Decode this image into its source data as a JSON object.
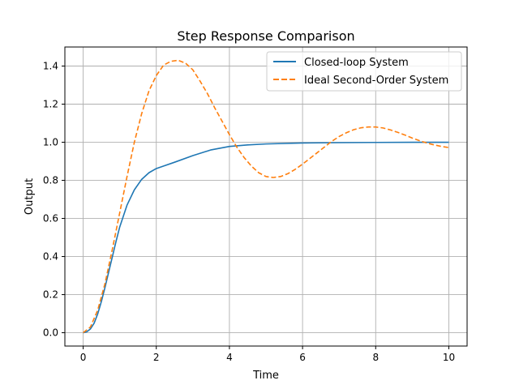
{
  "chart_data": {
    "type": "line",
    "title": "Step Response Comparison",
    "xlabel": "Time",
    "ylabel": "Output",
    "xlim": [
      -0.5,
      10.5
    ],
    "ylim": [
      -0.07,
      1.5
    ],
    "xticks": [
      0,
      2,
      4,
      6,
      8,
      10
    ],
    "yticks": [
      0.0,
      0.2,
      0.4,
      0.6,
      0.8,
      1.0,
      1.2,
      1.4
    ],
    "xtick_labels": [
      "0",
      "2",
      "4",
      "6",
      "8",
      "10"
    ],
    "ytick_labels": [
      "0.0",
      "0.2",
      "0.4",
      "0.6",
      "0.8",
      "1.0",
      "1.2",
      "1.4"
    ],
    "grid": true,
    "legend_position": "top-right",
    "series": [
      {
        "name": "Closed-loop System",
        "color": "#1f77b4",
        "style": "solid",
        "x": [
          0,
          0.1,
          0.2,
          0.3,
          0.4,
          0.5,
          0.6,
          0.7,
          0.8,
          0.9,
          1.0,
          1.2,
          1.4,
          1.6,
          1.8,
          2.0,
          2.2,
          2.5,
          3.0,
          3.5,
          4.0,
          4.5,
          5.0,
          6.0,
          7.0,
          8.0,
          9.0,
          10.0
        ],
        "y": [
          0.0,
          0.005,
          0.02,
          0.05,
          0.1,
          0.165,
          0.24,
          0.32,
          0.4,
          0.48,
          0.555,
          0.67,
          0.75,
          0.805,
          0.84,
          0.862,
          0.875,
          0.895,
          0.93,
          0.96,
          0.978,
          0.986,
          0.991,
          0.996,
          0.998,
          0.999,
          1.0,
          1.0
        ]
      },
      {
        "name": "Ideal Second-Order System",
        "color": "#ff7f0e",
        "style": "dashed",
        "x": [
          0,
          0.2,
          0.4,
          0.6,
          0.8,
          1.0,
          1.2,
          1.4,
          1.6,
          1.8,
          2.0,
          2.2,
          2.4,
          2.6,
          2.8,
          3.0,
          3.2,
          3.4,
          3.6,
          3.8,
          4.0,
          4.2,
          4.4,
          4.6,
          4.8,
          5.0,
          5.2,
          5.4,
          5.6,
          5.8,
          6.0,
          6.2,
          6.4,
          6.6,
          6.8,
          7.0,
          7.2,
          7.4,
          7.6,
          7.8,
          8.0,
          8.2,
          8.4,
          8.6,
          8.8,
          9.0,
          9.2,
          9.4,
          9.6,
          9.8,
          10.0
        ],
        "y": [
          0.0,
          0.03,
          0.12,
          0.26,
          0.44,
          0.63,
          0.82,
          1.0,
          1.15,
          1.27,
          1.35,
          1.405,
          1.425,
          1.43,
          1.415,
          1.38,
          1.32,
          1.255,
          1.18,
          1.11,
          1.04,
          0.975,
          0.92,
          0.875,
          0.84,
          0.82,
          0.815,
          0.82,
          0.835,
          0.858,
          0.885,
          0.915,
          0.945,
          0.975,
          1.005,
          1.03,
          1.05,
          1.066,
          1.076,
          1.08,
          1.08,
          1.075,
          1.065,
          1.052,
          1.038,
          1.022,
          1.008,
          0.996,
          0.986,
          0.978,
          0.972
        ]
      }
    ]
  }
}
